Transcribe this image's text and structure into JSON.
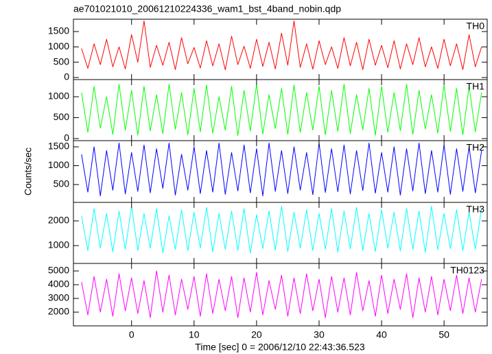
{
  "title": "ae701021010_20061210224336_wam1_bst_4band_nobin.qdp",
  "xlabel": "Time [sec] 0 = 2006/12/10 22:43:36.523",
  "ylabel": "Counts/sec",
  "chart_data": [
    {
      "type": "line",
      "label": "TH0",
      "color": "#ff0000",
      "xlim": [
        -9.3,
        56.9
      ],
      "xticks": [
        0,
        10,
        20,
        30,
        40,
        50
      ],
      "ylim": [
        -67,
        1903
      ],
      "yticks": [
        0,
        500,
        1000,
        1500
      ],
      "x": [
        -8,
        -7,
        -6,
        -5,
        -4,
        -3,
        -2,
        -1,
        0,
        1,
        2,
        3,
        4,
        5,
        6,
        7,
        8,
        9,
        10,
        11,
        12,
        13,
        14,
        15,
        16,
        17,
        18,
        19,
        20,
        21,
        22,
        23,
        24,
        25,
        26,
        27,
        28,
        29,
        30,
        31,
        32,
        33,
        34,
        35,
        36,
        37,
        38,
        39,
        40,
        41,
        42,
        43,
        44,
        45,
        46,
        47,
        48,
        49,
        50,
        51,
        52,
        53,
        54,
        55,
        56
      ],
      "values": [
        950,
        300,
        1100,
        420,
        1250,
        350,
        1000,
        280,
        1400,
        500,
        1850,
        330,
        1050,
        400,
        1150,
        260,
        1300,
        450,
        980,
        310,
        1200,
        380,
        1100,
        250,
        1350,
        420,
        1020,
        300,
        1250,
        360,
        1150,
        280,
        1450,
        400,
        1850,
        330,
        1100,
        270,
        1200,
        420,
        1000,
        300,
        1300,
        380,
        1150,
        260,
        1250,
        400,
        1050,
        320,
        1200,
        280,
        1100,
        420,
        1300,
        350,
        1000,
        300,
        1250,
        380,
        1100,
        260,
        1400,
        350,
        1000
      ]
    },
    {
      "type": "line",
      "label": "TH1",
      "color": "#00ff00",
      "xlim": [
        -9.3,
        56.9
      ],
      "xticks": [
        0,
        10,
        20,
        30,
        40,
        50
      ],
      "ylim": [
        -49,
        1410
      ],
      "yticks": [
        0,
        500,
        1000
      ],
      "x": [
        -8,
        -7,
        -6,
        -5,
        -4,
        -3,
        -2,
        -1,
        0,
        1,
        2,
        3,
        4,
        5,
        6,
        7,
        8,
        9,
        10,
        11,
        12,
        13,
        14,
        15,
        16,
        17,
        18,
        19,
        20,
        21,
        22,
        23,
        24,
        25,
        26,
        27,
        28,
        29,
        30,
        31,
        32,
        33,
        34,
        35,
        36,
        37,
        38,
        39,
        40,
        41,
        42,
        43,
        44,
        45,
        46,
        47,
        48,
        49,
        50,
        51,
        52,
        53,
        54,
        55,
        56
      ],
      "values": [
        1100,
        150,
        1250,
        250,
        1000,
        100,
        1300,
        200,
        1150,
        80,
        1250,
        180,
        1050,
        120,
        1300,
        220,
        1100,
        90,
        1200,
        160,
        1280,
        130,
        1000,
        200,
        1250,
        70,
        1150,
        180,
        1300,
        110,
        1050,
        240,
        1200,
        100,
        1280,
        150,
        1100,
        200,
        1250,
        90,
        1150,
        170,
        1300,
        120,
        1050,
        210,
        1200,
        80,
        1250,
        150,
        1100,
        190,
        1300,
        100,
        1150,
        230,
        1050,
        130,
        1280,
        170,
        1200,
        90,
        1250,
        160,
        1100
      ]
    },
    {
      "type": "line",
      "label": "TH2",
      "color": "#0000ff",
      "xlim": [
        -9.3,
        56.9
      ],
      "xticks": [
        0,
        10,
        20,
        30,
        40,
        50
      ],
      "ylim": [
        27,
        1664
      ],
      "yticks": [
        500,
        1000,
        1500
      ],
      "x": [
        -8,
        -7,
        -6,
        -5,
        -4,
        -3,
        -2,
        -1,
        0,
        1,
        2,
        3,
        4,
        5,
        6,
        7,
        8,
        9,
        10,
        11,
        12,
        13,
        14,
        15,
        16,
        17,
        18,
        19,
        20,
        21,
        22,
        23,
        24,
        25,
        26,
        27,
        28,
        29,
        30,
        31,
        32,
        33,
        34,
        35,
        36,
        37,
        38,
        39,
        40,
        41,
        42,
        43,
        44,
        45,
        46,
        47,
        48,
        49,
        50,
        51,
        52,
        53,
        54,
        55,
        56
      ],
      "values": [
        1300,
        300,
        1500,
        200,
        1400,
        350,
        1600,
        250,
        1350,
        320,
        1550,
        280,
        1450,
        400,
        1600,
        220,
        1300,
        350,
        1500,
        260,
        1400,
        300,
        1600,
        240,
        1350,
        330,
        1550,
        280,
        1450,
        200,
        1600,
        320,
        1400,
        260,
        1500,
        350,
        1350,
        230,
        1600,
        290,
        1450,
        310,
        1550,
        250,
        1400,
        340,
        1600,
        270,
        1350,
        300,
        1500,
        220,
        1450,
        330,
        1600,
        260,
        1400,
        300,
        1550,
        240,
        1450,
        320,
        1500,
        280,
        1400
      ]
    },
    {
      "type": "line",
      "label": "TH3",
      "color": "#00ffff",
      "xlim": [
        -9.3,
        56.9
      ],
      "xticks": [
        0,
        10,
        20,
        30,
        40,
        50
      ],
      "ylim": [
        278,
        2750
      ],
      "yticks": [
        1000,
        2000
      ],
      "x": [
        -8,
        -7,
        -6,
        -5,
        -4,
        -3,
        -2,
        -1,
        0,
        1,
        2,
        3,
        4,
        5,
        6,
        7,
        8,
        9,
        10,
        11,
        12,
        13,
        14,
        15,
        16,
        17,
        18,
        19,
        20,
        21,
        22,
        23,
        24,
        25,
        26,
        27,
        28,
        29,
        30,
        31,
        32,
        33,
        34,
        35,
        36,
        37,
        38,
        39,
        40,
        41,
        42,
        43,
        44,
        45,
        46,
        47,
        48,
        49,
        50,
        51,
        52,
        53,
        54,
        55,
        56
      ],
      "values": [
        2200,
        800,
        2500,
        900,
        2300,
        750,
        2400,
        850,
        2600,
        800,
        2300,
        900,
        2500,
        700,
        2200,
        850,
        2450,
        800,
        2350,
        900,
        2550,
        750,
        2300,
        850,
        2400,
        800,
        2500,
        700,
        2250,
        880,
        2400,
        820,
        2600,
        760,
        2350,
        900,
        2450,
        800,
        2300,
        850,
        2500,
        740,
        2400,
        870,
        2550,
        810,
        2300,
        760,
        2450,
        900,
        2350,
        780,
        2500,
        850,
        2400,
        720,
        2600,
        830,
        2300,
        880,
        2450,
        800,
        2350,
        860,
        2500
      ]
    },
    {
      "type": "line",
      "label": "TH0123",
      "color": "#ff00ff",
      "xlim": [
        -9.3,
        56.9
      ],
      "xticks": [
        0,
        10,
        20,
        30,
        40,
        50
      ],
      "ylim": [
        1000,
        5550
      ],
      "yticks": [
        2000,
        3000,
        4000,
        5000
      ],
      "x": [
        -8,
        -7,
        -6,
        -5,
        -4,
        -3,
        -2,
        -1,
        0,
        1,
        2,
        3,
        4,
        5,
        6,
        7,
        8,
        9,
        10,
        11,
        12,
        13,
        14,
        15,
        16,
        17,
        18,
        19,
        20,
        21,
        22,
        23,
        24,
        25,
        26,
        27,
        28,
        29,
        30,
        31,
        32,
        33,
        34,
        35,
        36,
        37,
        38,
        39,
        40,
        41,
        42,
        43,
        44,
        45,
        46,
        47,
        48,
        49,
        50,
        51,
        52,
        53,
        54,
        55,
        56
      ],
      "values": [
        4200,
        1800,
        4600,
        2000,
        4400,
        1700,
        4800,
        2100,
        4500,
        1900,
        4300,
        1600,
        5000,
        2000,
        4700,
        1800,
        4400,
        2200,
        4600,
        1700,
        4800,
        1900,
        4400,
        2100,
        4600,
        1600,
        4500,
        2000,
        4900,
        1800,
        4300,
        2200,
        4700,
        1700,
        4500,
        1900,
        4800,
        2100,
        4400,
        1600,
        4600,
        2000,
        4500,
        1800,
        4900,
        2100,
        4300,
        1700,
        4700,
        1900,
        4400,
        2200,
        4800,
        1600,
        4500,
        2000,
        4600,
        1800,
        4400,
        2100,
        4700,
        1900,
        4500,
        2000,
        4400
      ]
    }
  ]
}
